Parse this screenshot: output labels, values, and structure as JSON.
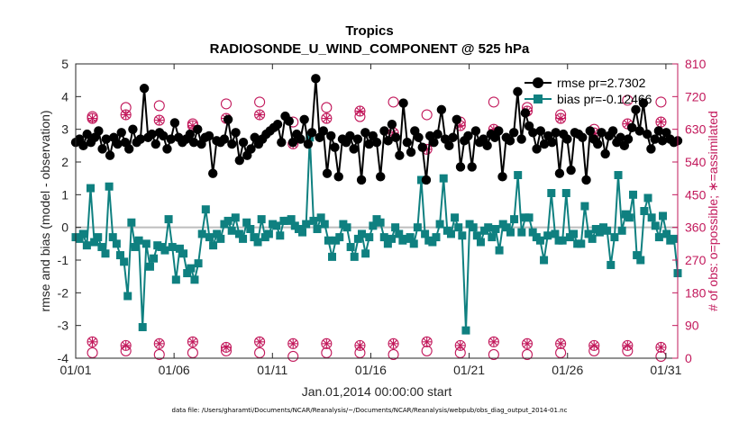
{
  "chart_data": {
    "type": "line",
    "title": "Tropics",
    "subtitle": "RADIOSONDE_U_WIND_COMPONENT @ 525 hPa",
    "xlabel": "Jan.01,2014 00:00:00 start",
    "ylabel": "rmse and bias (model - observation)",
    "ylabel_right": "# of obs: o=possible; ∗=assimilated",
    "footnote": "data file: /Users/gharamti/Documents/NCAR/Reanalysis/~/Documents/NCAR/Reanalysis/webpub/obs_diag_output_2014-01.nc",
    "x_ticks": [
      "01/01",
      "01/06",
      "01/11",
      "01/16",
      "01/21",
      "01/26",
      "01/31"
    ],
    "x_tick_days": [
      1,
      6,
      11,
      16,
      21,
      26,
      31
    ],
    "xlim": [
      1,
      31.6
    ],
    "ylim": [
      -4,
      5
    ],
    "y_ticks": [
      "-4",
      "-3",
      "-2",
      "-1",
      "0",
      "1",
      "2",
      "3",
      "4",
      "5"
    ],
    "ylim_right": [
      0,
      810
    ],
    "y_ticks_right": [
      "0",
      "90",
      "180",
      "270",
      "360",
      "450",
      "540",
      "630",
      "720",
      "810"
    ],
    "legend": [
      {
        "name": "rmse pr=2.7302",
        "color": "#000000",
        "marker": "circle"
      },
      {
        "name": "bias pr=-0.12466",
        "color": "#008080",
        "marker": "square"
      }
    ],
    "colors": {
      "rmse": "#000000",
      "bias": "#0f8080",
      "obs": "#c2185b",
      "zero_line": "#bdbdbd"
    },
    "series": [
      {
        "name": "rmse",
        "values": [
          2.6,
          2.7,
          2.5,
          2.85,
          2.6,
          2.75,
          2.95,
          2.4,
          2.7,
          2.2,
          2.75,
          2.55,
          2.9,
          2.6,
          2.4,
          3.0,
          2.6,
          2.7,
          4.25,
          2.75,
          2.85,
          2.55,
          2.9,
          2.8,
          2.4,
          2.7,
          3.2,
          2.75,
          2.6,
          2.7,
          2.85,
          2.6,
          3.0,
          2.55,
          2.75,
          2.8,
          1.65,
          2.65,
          2.6,
          2.7,
          3.3,
          2.55,
          2.9,
          2.05,
          2.6,
          2.2,
          2.4,
          2.75,
          2.55,
          2.7,
          2.85,
          2.95,
          3.05,
          3.15,
          2.6,
          3.4,
          3.25,
          2.6,
          2.85,
          2.7,
          3.3,
          2.55,
          2.9,
          4.55,
          2.75,
          2.95,
          1.65,
          2.8,
          2.45,
          1.55,
          2.7,
          2.6,
          2.8,
          2.4,
          2.7,
          1.45,
          2.9,
          2.55,
          2.8,
          2.6,
          1.55,
          2.95,
          2.65,
          3.15,
          2.75,
          2.2,
          3.8,
          2.6,
          2.3,
          2.95,
          2.75,
          2.45,
          1.45,
          2.8,
          2.6,
          2.85,
          3.6,
          2.7,
          2.5,
          2.75,
          3.3,
          1.85,
          2.65,
          2.8,
          1.85,
          2.95,
          2.6,
          2.7,
          2.5,
          2.85,
          2.75,
          2.95,
          1.55,
          2.75,
          2.65,
          2.9,
          4.15,
          2.7,
          3.5,
          3.1,
          2.9,
          2.4,
          2.95,
          2.55,
          2.8,
          2.6,
          2.9,
          1.65,
          2.85,
          2.7,
          1.75,
          2.9,
          2.85,
          2.75,
          1.45,
          2.95,
          2.7,
          2.55,
          2.9,
          2.25,
          2.8,
          2.95,
          2.6,
          2.75,
          2.5,
          2.7,
          3.05,
          3.6,
          2.95,
          3.8,
          2.85,
          2.4,
          2.7,
          2.95,
          2.65,
          2.9,
          2.7,
          2.6,
          2.65
        ]
      },
      {
        "name": "bias",
        "values": [
          -0.3,
          -0.35,
          -0.2,
          -0.55,
          1.2,
          -0.45,
          -0.3,
          -0.6,
          -0.8,
          1.25,
          -0.3,
          -0.5,
          -0.85,
          -1.05,
          -2.1,
          0.15,
          -0.6,
          -0.4,
          -3.05,
          -0.5,
          -1.2,
          -0.95,
          -0.55,
          -0.6,
          -0.7,
          0.25,
          -0.6,
          -1.6,
          -0.65,
          -0.8,
          -1.4,
          -1.25,
          -1.6,
          -1.1,
          -0.2,
          0.55,
          -0.3,
          -0.55,
          -0.2,
          -0.35,
          0.1,
          0.2,
          -0.1,
          0.3,
          -0.2,
          -0.35,
          0.15,
          -0.05,
          -0.3,
          -0.45,
          0.25,
          -0.3,
          -0.2,
          0.1,
          0.05,
          -0.25,
          0.2,
          0.2,
          0.25,
          0.05,
          -0.05,
          -0.15,
          0.1,
          2.75,
          0.2,
          -0.05,
          0.3,
          0.1,
          -0.4,
          -0.9,
          -0.4,
          -0.3,
          0.1,
          0.0,
          -0.6,
          -0.9,
          -0.35,
          -0.2,
          -0.8,
          -0.3,
          0.05,
          0.25,
          0.15,
          -0.3,
          -0.5,
          -0.35,
          0.0,
          -0.2,
          -0.4,
          -0.35,
          -0.3,
          -0.5,
          0.0,
          1.45,
          -0.2,
          -0.4,
          -0.45,
          -0.3,
          0.1,
          1.5,
          -0.1,
          -0.2,
          0.3,
          0.0,
          -0.25,
          -3.15,
          0.1,
          0.0,
          -0.25,
          -0.45,
          -0.1,
          0.0,
          -0.3,
          -0.05,
          -0.7,
          0.1,
          0.0,
          -0.15,
          0.25,
          1.6,
          -0.15,
          0.3,
          0.3,
          -0.15,
          -0.3,
          -0.4,
          -1.0,
          -0.25,
          1.05,
          -0.2,
          -0.4,
          -0.4,
          1.05,
          -0.3,
          -0.2,
          -0.5,
          -0.5,
          0.65,
          -0.2,
          -0.35,
          -0.05,
          -0.15,
          0.0,
          -0.1,
          -1.15,
          -0.3,
          1.6,
          -0.1,
          0.4,
          0.3,
          1.0,
          -0.85,
          -1.0,
          0.5,
          0.9,
          0.3,
          0.05,
          -0.3,
          0.35,
          -0.2,
          -0.4,
          -0.35,
          -1.4
        ]
      }
    ],
    "obs_possible": [
      665,
      690,
      695,
      645,
      700,
      705,
      650,
      690,
      665,
      705,
      670,
      650,
      705,
      690,
      670,
      630,
      710,
      705
    ],
    "obs_assimilated": [
      660,
      670,
      655,
      640,
      660,
      670,
      590,
      660,
      680,
      620,
      575,
      640,
      630,
      680,
      660,
      620,
      645,
      650
    ],
    "obs_low_possible": [
      15,
      20,
      10,
      15,
      20,
      15,
      5,
      15,
      15,
      10,
      20,
      15,
      10,
      10,
      15,
      20,
      20,
      5
    ],
    "obs_low_assimilated": [
      45,
      35,
      40,
      45,
      30,
      45,
      40,
      40,
      35,
      40,
      45,
      35,
      45,
      40,
      40,
      35,
      35,
      30
    ]
  }
}
